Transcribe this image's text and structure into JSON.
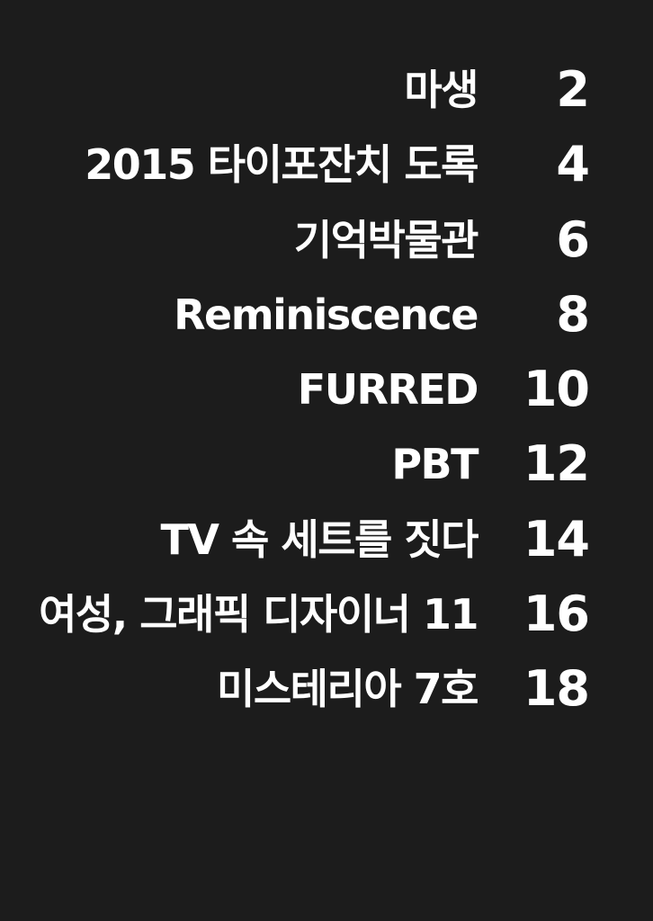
{
  "toc": {
    "entries": [
      {
        "title": "마생",
        "page": "2"
      },
      {
        "title": "2015 타이포잔치 도록",
        "page": "4"
      },
      {
        "title": "기억박물관",
        "page": "6"
      },
      {
        "title": "Reminiscence",
        "page": "8"
      },
      {
        "title": "FURRED",
        "page": "10"
      },
      {
        "title": "PBT",
        "page": "12"
      },
      {
        "title": "TV 속 세트를 짓다",
        "page": "14"
      },
      {
        "title": "여성, 그래픽 디자이너 11",
        "page": "16"
      },
      {
        "title": "미스테리아 7호",
        "page": "18"
      }
    ]
  }
}
